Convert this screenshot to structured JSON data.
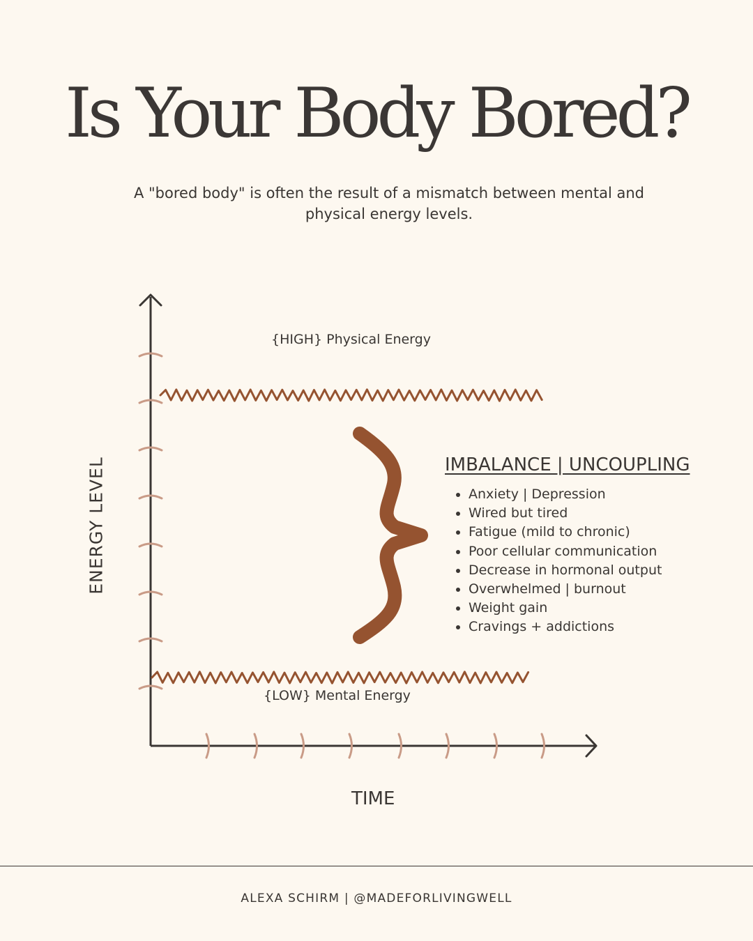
{
  "title": "Is Your Body Bored?",
  "subtitle": "A \"bored body\" is often the result of a mismatch between mental and physical energy levels.",
  "diagram": {
    "y_axis_label": "ENERGY LEVEL",
    "x_axis_label": "TIME",
    "high_label": "{HIGH} Physical Energy",
    "low_label": "{LOW} Mental Energy",
    "imbalance_heading": "IMBALANCE | UNCOUPLING",
    "symptoms": [
      "Anxiety | Depression",
      "Wired but tired",
      "Fatigue (mild to chronic)",
      "Poor cellular communication",
      "Decrease in hormonal output",
      "Overwhelmed | burnout",
      "Weight gain",
      "Cravings + addictions"
    ]
  },
  "footer": "ALEXA SCHIRM | @MADEFORLIVINGWELL",
  "colors": {
    "background": "#fdf8f0",
    "text": "#3a3633",
    "brown": "#955330",
    "tick": "#c99b87"
  }
}
